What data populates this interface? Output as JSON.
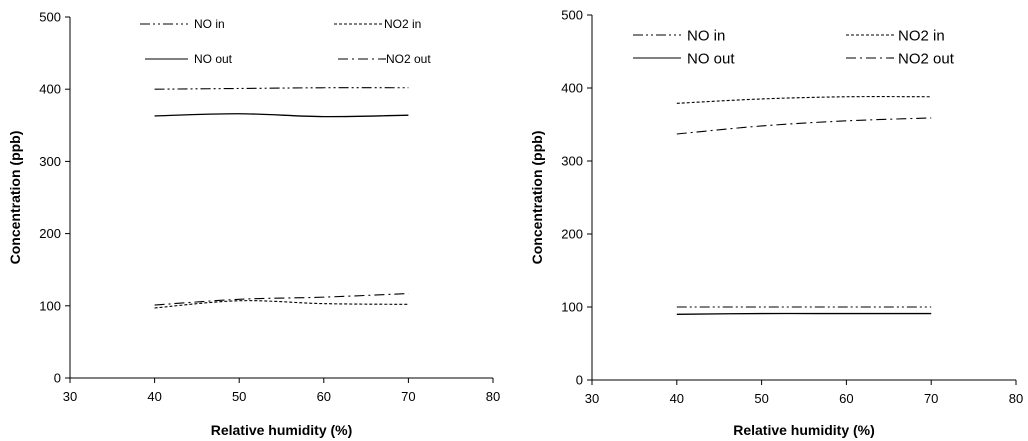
{
  "chart_data": [
    {
      "type": "line",
      "xlabel": "Relative humidity (%)",
      "ylabel": "Concentration (ppb)",
      "xlim": [
        30,
        80
      ],
      "ylim": [
        0,
        500
      ],
      "xticks": [
        30,
        40,
        50,
        60,
        70,
        80
      ],
      "yticks": [
        0,
        100,
        200,
        300,
        400,
        500
      ],
      "legend_position": "top",
      "series": [
        {
          "name": "NO in",
          "dash": "dashdotdot",
          "x": [
            40,
            50,
            60,
            70
          ],
          "y": [
            400,
            401,
            402,
            402
          ]
        },
        {
          "name": "NO2 in",
          "dash": "dotted",
          "x": [
            40,
            50,
            60,
            70
          ],
          "y": [
            97,
            107,
            103,
            102
          ]
        },
        {
          "name": "NO out",
          "dash": "solid",
          "x": [
            40,
            50,
            60,
            70
          ],
          "y": [
            363,
            366,
            362,
            364
          ]
        },
        {
          "name": "NO2 out",
          "dash": "dashdot",
          "x": [
            40,
            50,
            60,
            70
          ],
          "y": [
            101,
            109,
            112,
            117
          ]
        }
      ]
    },
    {
      "type": "line",
      "xlabel": "Relative humidity (%)",
      "ylabel": "Concentration (ppb)",
      "xlim": [
        30,
        80
      ],
      "ylim": [
        0,
        500
      ],
      "xticks": [
        30,
        40,
        50,
        60,
        70,
        80
      ],
      "yticks": [
        0,
        100,
        200,
        300,
        400,
        500
      ],
      "legend_position": "top",
      "series": [
        {
          "name": "NO in",
          "dash": "dashdotdot",
          "x": [
            40,
            50,
            60,
            70
          ],
          "y": [
            100,
            100,
            100,
            100
          ]
        },
        {
          "name": "NO2 in",
          "dash": "dotted",
          "x": [
            40,
            50,
            60,
            70
          ],
          "y": [
            379,
            385,
            388,
            388
          ]
        },
        {
          "name": "NO out",
          "dash": "solid",
          "x": [
            40,
            50,
            60,
            70
          ],
          "y": [
            90,
            91,
            91,
            91
          ]
        },
        {
          "name": "NO2 out",
          "dash": "dashdot",
          "x": [
            40,
            50,
            60,
            70
          ],
          "y": [
            337,
            348,
            355,
            359
          ]
        }
      ]
    }
  ]
}
